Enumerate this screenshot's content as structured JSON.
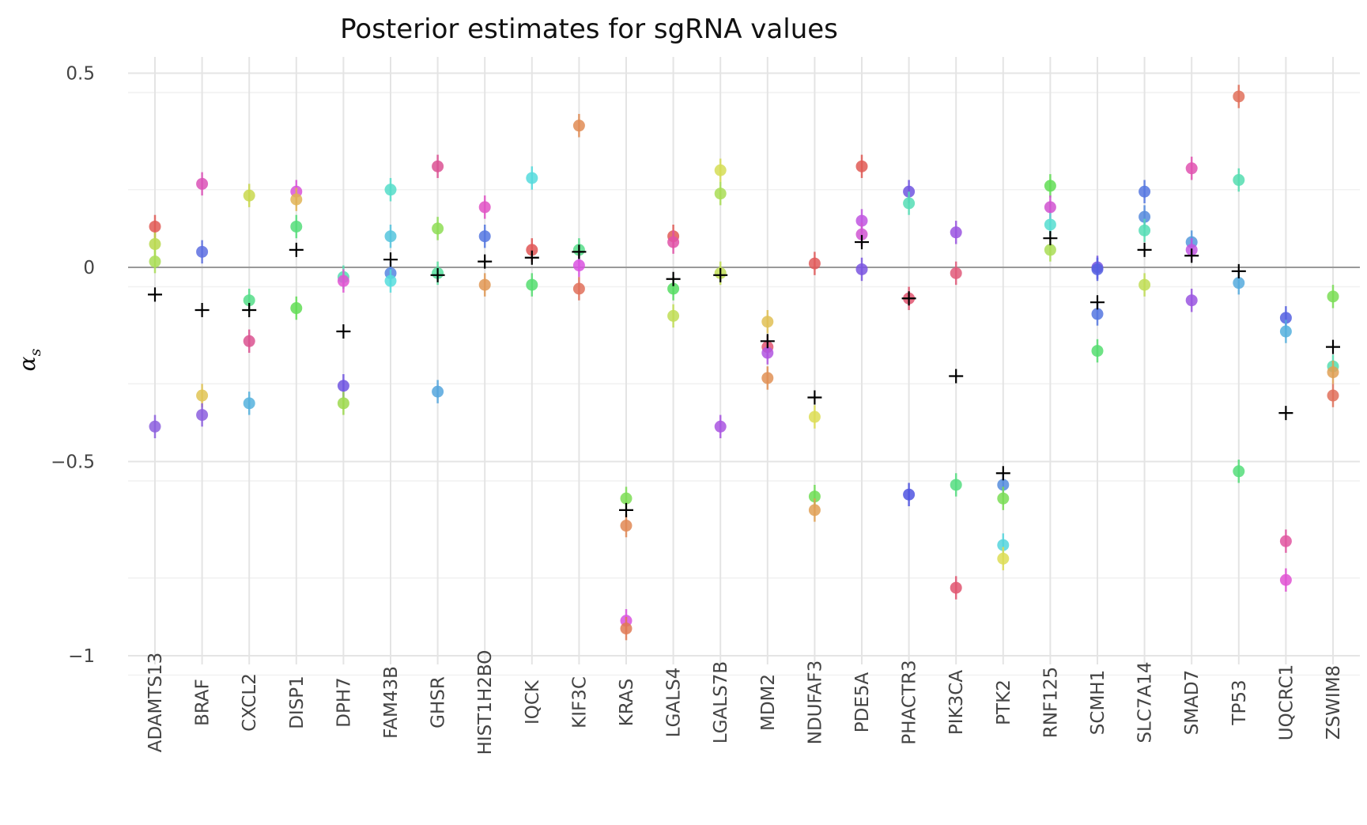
{
  "chart_data": {
    "type": "scatter",
    "title": "Posterior estimates for sgRNA values",
    "ylabel": {
      "main": "α",
      "sub": "s"
    },
    "xlabel": "",
    "ylim": [
      -1.05,
      0.55
    ],
    "yticks": [
      {
        "value": 0.5,
        "label": "0.5"
      },
      {
        "value": 0,
        "label": "0"
      },
      {
        "value": -0.5,
        "label": "−0.5"
      },
      {
        "value": -1,
        "label": "−1"
      }
    ],
    "grid": true,
    "categories": [
      "ADAMTS13",
      "BRAF",
      "CXCL2",
      "DISP1",
      "DPH7",
      "FAM43B",
      "GHSR",
      "HIST1H2BO",
      "IQCK",
      "KIF3C",
      "KRAS",
      "LGALS4",
      "LGALS7B",
      "MDM2",
      "NDUFAF3",
      "PDE5A",
      "PHACTR3",
      "PIK3CA",
      "PTK2",
      "RNF125",
      "SCMH1",
      "SLC7A14",
      "SMAD7",
      "TP53",
      "UQCRC1",
      "ZSWIM8"
    ],
    "gene_means": [
      -0.07,
      -0.11,
      -0.11,
      0.045,
      -0.165,
      0.02,
      -0.02,
      0.015,
      0.025,
      0.04,
      -0.625,
      -0.03,
      -0.02,
      -0.19,
      -0.335,
      0.065,
      -0.08,
      -0.28,
      -0.53,
      0.075,
      -0.09,
      0.045,
      0.03,
      -0.01,
      -0.375,
      -0.205
    ],
    "sgrna_points": [
      {
        "gene": "ADAMTS13",
        "values": [
          0.105,
          0.06,
          0.015,
          -0.41
        ],
        "colors": [
          "#e05a55",
          "#b9d84d",
          "#a9dd55",
          "#8c5fde"
        ]
      },
      {
        "gene": "BRAF",
        "values": [
          0.215,
          0.04,
          -0.33,
          -0.38
        ],
        "colors": [
          "#db52b7",
          "#5d6fe0",
          "#e0c455",
          "#8c5fde"
        ]
      },
      {
        "gene": "CXCL2",
        "values": [
          0.185,
          -0.085,
          -0.19,
          -0.35
        ],
        "colors": [
          "#c9d84d",
          "#55dd88",
          "#db5291",
          "#55b1dd"
        ]
      },
      {
        "gene": "DISP1",
        "values": [
          0.195,
          0.175,
          0.105,
          -0.105
        ],
        "colors": [
          "#d952d9",
          "#e0b455",
          "#55dd7a",
          "#62dd55"
        ]
      },
      {
        "gene": "DPH7",
        "values": [
          -0.025,
          -0.035,
          -0.305,
          -0.35
        ],
        "colors": [
          "#55ddb0",
          "#e052d2",
          "#7055e0",
          "#9cd84d"
        ]
      },
      {
        "gene": "FAM43B",
        "values": [
          0.2,
          0.08,
          -0.015,
          -0.035
        ],
        "colors": [
          "#55ddc9",
          "#55c4dd",
          "#5585e0",
          "#55dddd"
        ]
      },
      {
        "gene": "GHSR",
        "values": [
          0.26,
          0.1,
          -0.015,
          -0.32
        ],
        "colors": [
          "#db5293",
          "#8edd55",
          "#55dd9c",
          "#55a6dd"
        ]
      },
      {
        "gene": "HIST1H2BO",
        "values": [
          0.155,
          0.08,
          -0.045
        ],
        "colors": [
          "#e052c4",
          "#5577e0",
          "#e09855"
        ]
      },
      {
        "gene": "IQCK",
        "values": [
          0.23,
          0.045,
          -0.045
        ],
        "colors": [
          "#55dbdd",
          "#e05555",
          "#55dd70"
        ]
      },
      {
        "gene": "KIF3C",
        "values": [
          0.365,
          0.045,
          0.005,
          -0.055
        ],
        "colors": [
          "#e08c55",
          "#55dd88",
          "#d952e0",
          "#e0705a"
        ]
      },
      {
        "gene": "KRAS",
        "values": [
          -0.595,
          -0.665,
          -0.91,
          -0.93
        ],
        "colors": [
          "#7ddd55",
          "#e08855",
          "#d952e0",
          "#e07a55"
        ]
      },
      {
        "gene": "LGALS4",
        "values": [
          0.08,
          0.065,
          -0.055,
          -0.125
        ],
        "colors": [
          "#e05a55",
          "#e052a8",
          "#55dd62",
          "#c0dd55"
        ]
      },
      {
        "gene": "LGALS7B",
        "values": [
          0.25,
          0.19,
          -0.015,
          -0.41
        ],
        "colors": [
          "#d5dd55",
          "#a9dd55",
          "#c0dd55",
          "#a955e0"
        ]
      },
      {
        "gene": "MDM2",
        "values": [
          -0.14,
          -0.205,
          -0.22,
          -0.285
        ],
        "colors": [
          "#e0c055",
          "#e05570",
          "#b055e0",
          "#e09055"
        ]
      },
      {
        "gene": "NDUFAF3",
        "values": [
          0.01,
          -0.385,
          -0.59,
          -0.625
        ],
        "colors": [
          "#e05a5a",
          "#dddd55",
          "#6edd55",
          "#e0a055"
        ]
      },
      {
        "gene": "PDE5A",
        "values": [
          0.26,
          0.12,
          0.085,
          -0.005
        ],
        "colors": [
          "#e05a55",
          "#c055e0",
          "#d055d2",
          "#7a55e0"
        ]
      },
      {
        "gene": "PHACTR3",
        "values": [
          0.195,
          0.165,
          -0.08,
          -0.585
        ],
        "colors": [
          "#7055e0",
          "#55ddb5",
          "#e05570",
          "#5055e0"
        ]
      },
      {
        "gene": "PIK3CA",
        "values": [
          0.09,
          -0.015,
          -0.56,
          -0.825
        ],
        "colors": [
          "#9a55e0",
          "#e05a7a",
          "#55dd80",
          "#e05570"
        ]
      },
      {
        "gene": "PTK2",
        "values": [
          -0.56,
          -0.595,
          -0.715,
          -0.75
        ],
        "colors": [
          "#558cdd",
          "#7add55",
          "#55d5dd",
          "#dddd55"
        ]
      },
      {
        "gene": "RNF125",
        "values": [
          0.21,
          0.155,
          0.11,
          0.045
        ],
        "colors": [
          "#62dd55",
          "#d052d0",
          "#55ddd0",
          "#a9dd55"
        ]
      },
      {
        "gene": "SCMH1",
        "values": [
          0.0,
          -0.005,
          -0.12,
          -0.215
        ],
        "colors": [
          "#7a55e0",
          "#5560e0",
          "#5577e0",
          "#55dd70"
        ]
      },
      {
        "gene": "SLC7A14",
        "values": [
          0.195,
          0.13,
          0.095,
          -0.045
        ],
        "colors": [
          "#5577e0",
          "#558add",
          "#55ddb5",
          "#c0dd55"
        ]
      },
      {
        "gene": "SMAD7",
        "values": [
          0.255,
          0.065,
          0.045,
          -0.085
        ],
        "colors": [
          "#e052b0",
          "#5599dd",
          "#c055e0",
          "#9a55e0"
        ]
      },
      {
        "gene": "TP53",
        "values": [
          0.44,
          0.225,
          -0.04,
          -0.525
        ],
        "colors": [
          "#e0705a",
          "#55ddb0",
          "#55aadd",
          "#55dd7a"
        ]
      },
      {
        "gene": "UQCRC1",
        "values": [
          -0.13,
          -0.165,
          -0.705,
          -0.805
        ],
        "colors": [
          "#5560e0",
          "#55b0dd",
          "#e055a0",
          "#e052d2"
        ]
      },
      {
        "gene": "ZSWIM8",
        "values": [
          -0.075,
          -0.255,
          -0.27,
          -0.33
        ],
        "colors": [
          "#7add55",
          "#55ddb0",
          "#e0a055",
          "#e0705a"
        ]
      }
    ],
    "error_half_width": 0.03,
    "mean_marker": "plus",
    "mean_color": "#000000",
    "zero_line_color": "#999999"
  }
}
